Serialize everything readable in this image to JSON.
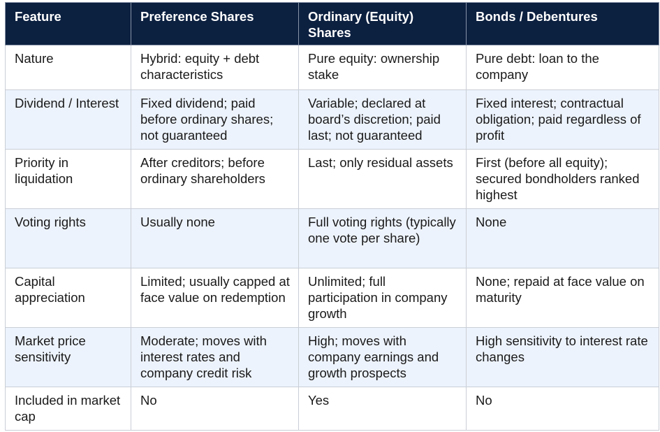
{
  "table": {
    "columns": [
      "Feature",
      "Preference Shares",
      "Ordinary (Equity) Shares",
      "Bonds / Debentures"
    ],
    "rows": [
      [
        "Nature",
        "Hybrid: equity + debt characteristics",
        "Pure equity: ownership stake",
        "Pure debt: loan to the company"
      ],
      [
        "Dividend / Interest",
        "Fixed dividend; paid before ordinary shares; not guaranteed",
        "Variable; declared at board’s discretion; paid last; not guaranteed",
        "Fixed interest; contractual obligation; paid regardless of profit"
      ],
      [
        "Priority in liquidation",
        "After creditors; before ordinary shareholders",
        "Last; only residual assets",
        "First (before all equity); secured bondholders ranked highest"
      ],
      [
        "Voting rights",
        "Usually none",
        "Full voting rights (typically one vote per share)",
        "None"
      ],
      [
        "Capital appreciation",
        "Limited; usually capped at face value on redemption",
        "Unlimited; full participation in company growth",
        "None; repaid at face value on maturity"
      ],
      [
        "Market price sensitivity",
        "Moderate; moves with interest rates and company credit risk",
        "High; moves with company earnings and growth prospects",
        "High sensitivity to interest rate changes"
      ],
      [
        "Included in market cap",
        "No",
        "Yes",
        "No"
      ]
    ]
  }
}
